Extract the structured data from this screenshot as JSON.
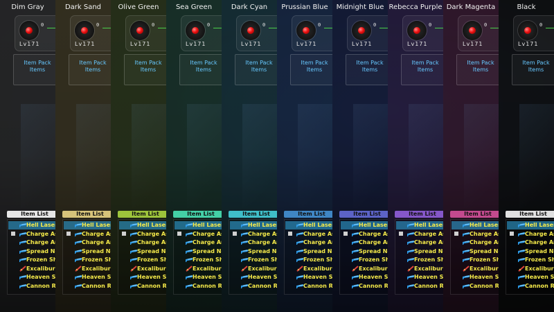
{
  "page": {
    "background": "#0b0f16"
  },
  "hud": {
    "orb_value": "0",
    "level_label": "Lv171",
    "side_letters": [
      "H",
      "T"
    ]
  },
  "item_pack": {
    "line1": "Item Pack",
    "line2": "Items"
  },
  "item_list": {
    "title": "Item List",
    "rows": [
      {
        "label": "Hell Laser -",
        "icon": "laser-gun-icon",
        "selected": true,
        "marker": false
      },
      {
        "label": "Charge Ass",
        "icon": "laser-gun-icon",
        "selected": false,
        "marker": true
      },
      {
        "label": "Charge Arm",
        "icon": "laser-gun-icon",
        "selected": false,
        "marker": false
      },
      {
        "label": "Spread Nee",
        "icon": "laser-gun-icon",
        "selected": false,
        "marker": false
      },
      {
        "label": "Frozen Sho",
        "icon": "laser-gun-icon",
        "selected": false,
        "marker": false
      },
      {
        "label": "Excalibur",
        "icon": "sword-icon",
        "selected": false,
        "marker": false
      },
      {
        "label": "Heaven Str",
        "icon": "laser-gun-icon",
        "selected": false,
        "marker": false
      },
      {
        "label": "Cannon Ro",
        "icon": "laser-gun-icon",
        "selected": false,
        "marker": false
      }
    ]
  },
  "themes": [
    {
      "name": "Dim Gray",
      "tint": "#2a2a2a",
      "header": "#e6e6e6"
    },
    {
      "name": "Dark Sand",
      "tint": "#3a3420",
      "header": "#d6c37a"
    },
    {
      "name": "Olive Green",
      "tint": "#2b3419",
      "header": "#9dc43b"
    },
    {
      "name": "Sea Green",
      "tint": "#1a3328",
      "header": "#44cfa6"
    },
    {
      "name": "Dark Cyan",
      "tint": "#163036",
      "header": "#3fbec9"
    },
    {
      "name": "Prussian Blue",
      "tint": "#162641",
      "header": "#3f86c4"
    },
    {
      "name": "Midnight Blue",
      "tint": "#141a36",
      "header": "#5c63c7"
    },
    {
      "name": "Rebecca Purple",
      "tint": "#261a3a",
      "header": "#8557c9"
    },
    {
      "name": "Dark Magenta",
      "tint": "#35162a",
      "header": "#c34a8e"
    },
    {
      "name": "Black",
      "tint": "#0d0d0d",
      "header": "#e0e0e0"
    }
  ],
  "colors": {
    "pack_text": "#67c8ff",
    "list_text": "#f5ea4a",
    "selected_row": "#2e96c8",
    "orb": "#e11111",
    "hp_bar": "#4ad14a"
  }
}
